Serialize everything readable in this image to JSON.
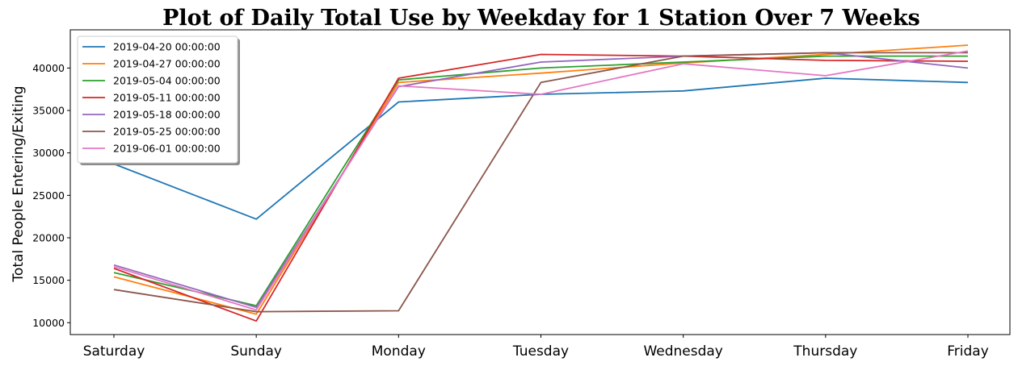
{
  "chart_data": {
    "type": "line",
    "title": "Plot of Daily Total Use by Weekday for 1 Station Over 7 Weeks",
    "xlabel": "",
    "ylabel": "Total People Entering/Exiting",
    "categories": [
      "Saturday",
      "Sunday",
      "Monday",
      "Tuesday",
      "Wednesday",
      "Thursday",
      "Friday"
    ],
    "ylim": [
      8600,
      44500
    ],
    "yticks": [
      10000,
      15000,
      20000,
      25000,
      30000,
      35000,
      40000
    ],
    "legend_position": "top-left",
    "grid": false,
    "series": [
      {
        "name": "2019-04-20 00:00:00",
        "color": "#1f77b4",
        "values": [
          28700,
          22200,
          36000,
          36900,
          37300,
          38800,
          38300
        ]
      },
      {
        "name": "2019-04-27 00:00:00",
        "color": "#ff7f0e",
        "values": [
          15400,
          11000,
          38300,
          39400,
          40600,
          41600,
          42700
        ]
      },
      {
        "name": "2019-05-04 00:00:00",
        "color": "#2ca02c",
        "values": [
          15900,
          12000,
          38600,
          40000,
          40700,
          41400,
          41400
        ]
      },
      {
        "name": "2019-05-11 00:00:00",
        "color": "#d62728",
        "values": [
          16400,
          10200,
          38800,
          41600,
          41400,
          40900,
          40800
        ]
      },
      {
        "name": "2019-05-18 00:00:00",
        "color": "#9467bd",
        "values": [
          16800,
          11800,
          37800,
          40700,
          41400,
          41800,
          40000
        ]
      },
      {
        "name": "2019-05-25 00:00:00",
        "color": "#8c564b",
        "values": [
          13900,
          11300,
          11400,
          38300,
          41400,
          41800,
          41800
        ]
      },
      {
        "name": "2019-06-01 00:00:00",
        "color": "#e377c2",
        "values": [
          16600,
          11500,
          37900,
          36900,
          40500,
          39100,
          42000
        ]
      }
    ]
  }
}
